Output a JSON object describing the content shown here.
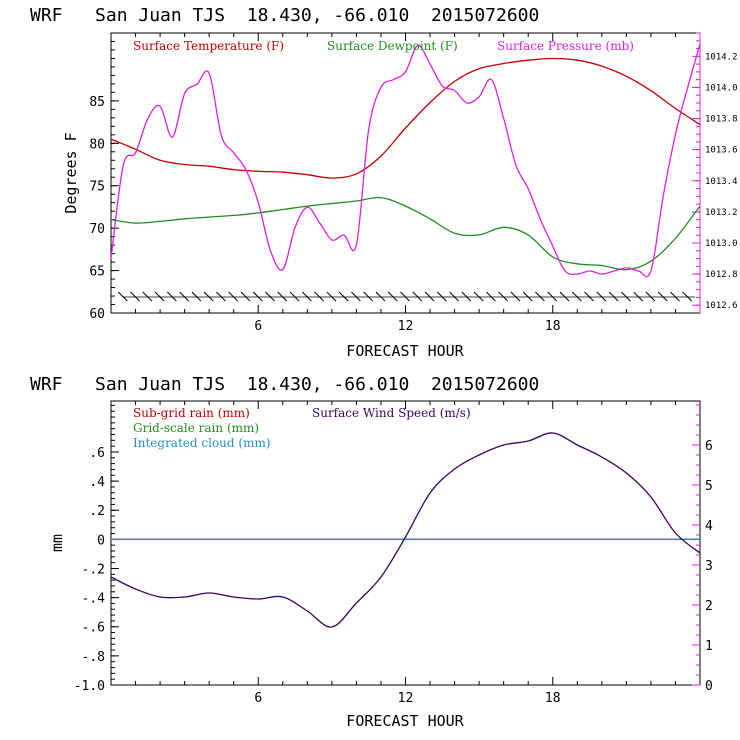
{
  "chart_data": [
    {
      "type": "line",
      "title": "WRF   San Juan TJS  18.430, -66.010  2015072600",
      "xlabel": "FORECAST HOUR",
      "ylabel": "Degrees F",
      "xlim": [
        0,
        24
      ],
      "ylim": [
        60,
        93
      ],
      "x_ticks": [
        6,
        12,
        18
      ],
      "y_ticks": [
        60,
        65,
        70,
        75,
        80,
        85
      ],
      "y2lim": [
        1012.55,
        1014.35
      ],
      "y2_ticks": [
        1012.6,
        1012.8,
        1013.0,
        1013.2,
        1013.4,
        1013.6,
        1013.8,
        1014.0,
        1014.2
      ],
      "grid": false,
      "legend_position": "top",
      "colors": {
        "temperature": "#c00000",
        "dewpoint": "#228b22",
        "pressure": "#e020e0",
        "wind_barbs": "#000000"
      },
      "series": [
        {
          "name": "Surface Temperature (F)",
          "axis": "left",
          "x": [
            0,
            1,
            2,
            3,
            4,
            5,
            6,
            7,
            8,
            9,
            10,
            11,
            12,
            13,
            14,
            15,
            16,
            17,
            18,
            19,
            20,
            21,
            22,
            23,
            24
          ],
          "y": [
            80.5,
            79.3,
            78.0,
            77.5,
            77.3,
            76.9,
            76.7,
            76.6,
            76.3,
            75.9,
            76.4,
            78.5,
            81.8,
            84.8,
            87.3,
            88.8,
            89.4,
            89.8,
            90.0,
            89.8,
            89.1,
            87.9,
            86.2,
            84.1,
            82.2
          ]
        },
        {
          "name": "Surface Dewpoint (F)",
          "axis": "left",
          "x": [
            0,
            1,
            2,
            3,
            4,
            5,
            6,
            7,
            8,
            9,
            10,
            11,
            12,
            13,
            14,
            15,
            16,
            17,
            18,
            19,
            20,
            21,
            22,
            23,
            24
          ],
          "y": [
            71.0,
            70.6,
            70.8,
            71.1,
            71.3,
            71.5,
            71.8,
            72.2,
            72.6,
            72.9,
            73.2,
            73.6,
            72.6,
            71.1,
            69.4,
            69.2,
            70.1,
            69.2,
            66.6,
            65.8,
            65.6,
            65.1,
            66.1,
            68.8,
            72.6
          ]
        },
        {
          "name": "Surface Pressure (mb)",
          "axis": "right",
          "x": [
            0,
            0.5,
            1,
            1.5,
            2,
            2.5,
            3,
            3.5,
            4,
            4.5,
            5,
            5.5,
            6,
            6.5,
            7,
            7.5,
            8,
            8.5,
            9,
            9.5,
            10,
            10.5,
            11,
            11.5,
            12,
            12.5,
            13,
            13.5,
            14,
            14.5,
            15,
            15.5,
            16,
            16.5,
            17,
            17.5,
            18,
            18.5,
            19,
            19.5,
            20,
            20.5,
            21,
            21.5,
            22,
            22.5,
            23,
            23.5,
            24
          ],
          "y": [
            1012.9,
            1013.5,
            1013.58,
            1013.8,
            1013.88,
            1013.68,
            1013.96,
            1014.02,
            1014.09,
            1013.69,
            1013.58,
            1013.47,
            1013.26,
            1012.95,
            1012.83,
            1013.1,
            1013.23,
            1013.13,
            1013.02,
            1013.05,
            1012.99,
            1013.73,
            1014.0,
            1014.05,
            1014.1,
            1014.27,
            1014.15,
            1014.01,
            1013.98,
            1013.9,
            1013.94,
            1014.05,
            1013.8,
            1013.5,
            1013.35,
            1013.15,
            1012.98,
            1012.82,
            1012.8,
            1012.82,
            1012.8,
            1012.82,
            1012.84,
            1012.82,
            1012.82,
            1013.3,
            1013.7,
            1014.0,
            1014.28
          ]
        }
      ]
    },
    {
      "type": "line",
      "title": "WRF   San Juan TJS  18.430, -66.010  2015072600",
      "xlabel": "FORECAST HOUR",
      "ylabel": "mm",
      "xlim": [
        0,
        24
      ],
      "ylim": [
        -1.0,
        0.95
      ],
      "x_ticks": [
        6,
        12,
        18
      ],
      "y_ticks": [
        -1.0,
        -0.8,
        -0.6,
        -0.4,
        -0.2,
        0,
        0.2,
        0.4,
        0.6
      ],
      "y_tick_labels": [
        "-1.0",
        "-.8",
        "-.6",
        "-.4",
        "-.2",
        "0",
        ".2",
        ".4",
        ".6"
      ],
      "y2lim": [
        0,
        7.1
      ],
      "y2_ticks": [
        0,
        1,
        2,
        3,
        4,
        5,
        6
      ],
      "grid": false,
      "legend_position": "top-left",
      "colors": {
        "subgrid_rain": "#c00000",
        "gridscale_rain": "#228b22",
        "cloud": "#1e90c0",
        "wind_speed": "#3a0060"
      },
      "series": [
        {
          "name": "Sub-grid rain (mm)",
          "axis": "left",
          "x": [
            0,
            24
          ],
          "y": [
            0,
            0
          ]
        },
        {
          "name": "Grid-scale rain (mm)",
          "axis": "left",
          "x": [
            0,
            24
          ],
          "y": [
            0,
            0
          ]
        },
        {
          "name": "Integrated cloud (mm)",
          "axis": "left",
          "x": [
            0,
            24
          ],
          "y": [
            0,
            0
          ]
        },
        {
          "name": "Surface Wind Speed (m/s)",
          "axis": "right",
          "x": [
            0,
            1,
            2,
            3,
            4,
            5,
            6,
            7,
            8,
            9,
            10,
            11,
            12,
            13,
            14,
            15,
            16,
            17,
            18,
            19,
            20,
            21,
            22,
            23,
            24
          ],
          "y": [
            2.7,
            2.4,
            2.2,
            2.2,
            2.3,
            2.2,
            2.15,
            2.2,
            1.85,
            1.45,
            2.05,
            2.7,
            3.7,
            4.8,
            5.4,
            5.75,
            6.0,
            6.1,
            6.3,
            6.0,
            5.7,
            5.3,
            4.7,
            3.8,
            3.3
          ]
        }
      ]
    }
  ]
}
